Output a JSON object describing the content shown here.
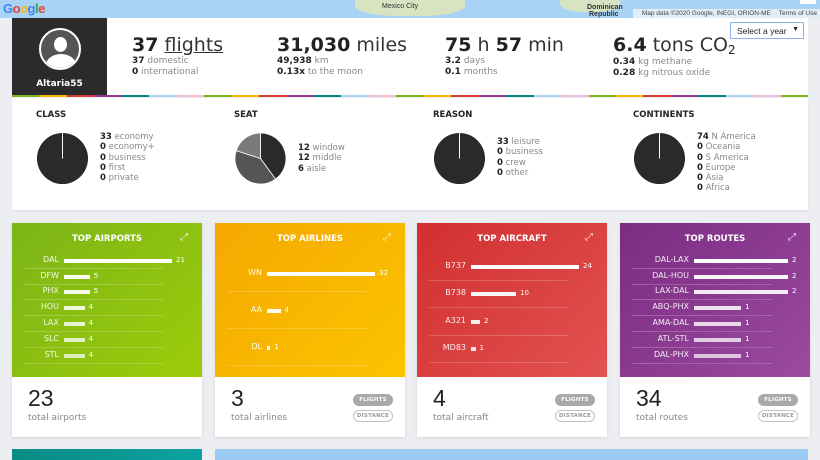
{
  "map": {
    "logo": [
      "G",
      "o",
      "o",
      "g",
      "l",
      "e"
    ],
    "places": [
      "Mexico City",
      "Dominican",
      "Republic"
    ],
    "attribution": "Map data ©2020 Google, INEGI, ORION-ME",
    "terms": "Terms of Use"
  },
  "profile": {
    "username": "Altaria55"
  },
  "stats": {
    "flights": {
      "number": "37",
      "unit": "flights",
      "lines": [
        {
          "v": "37",
          "t": "domestic"
        },
        {
          "v": "0",
          "t": "international"
        }
      ]
    },
    "distance": {
      "number": "31,030",
      "unit": "miles",
      "lines": [
        {
          "v": "49,938",
          "t": "km"
        },
        {
          "v": "0.13x",
          "t": "to the moon"
        }
      ]
    },
    "duration": {
      "hours": "75",
      "h": "h",
      "minutes": "57",
      "min": "min",
      "lines": [
        {
          "v": "3.2",
          "t": "days"
        },
        {
          "v": "0.1",
          "t": "months"
        }
      ]
    },
    "emissions": {
      "number": "6.4",
      "unit": "tons CO",
      "sub": "2",
      "lines": [
        {
          "v": "0.34",
          "t": "kg methane"
        },
        {
          "v": "0.28",
          "t": "kg nitrous oxide"
        }
      ]
    }
  },
  "year_select": {
    "value": "Select a year",
    "caret": "▼"
  },
  "stripe_colors": [
    "#7cb518",
    "#f7b500",
    "#d83a3a",
    "#8e3a8f",
    "#0f7f7f",
    "#a9d3f5",
    "#f2bcd6"
  ],
  "breakdown": [
    {
      "title": "CLASS",
      "items": [
        {
          "v": "33",
          "t": "economy"
        },
        {
          "v": "0",
          "t": "economy+"
        },
        {
          "v": "0",
          "t": "business"
        },
        {
          "v": "0",
          "t": "first"
        },
        {
          "v": "0",
          "t": "private"
        }
      ]
    },
    {
      "title": "SEAT",
      "items": [
        {
          "v": "12",
          "t": "window"
        },
        {
          "v": "12",
          "t": "middle"
        },
        {
          "v": "6",
          "t": "aisle"
        }
      ]
    },
    {
      "title": "REASON",
      "items": [
        {
          "v": "33",
          "t": "leisure"
        },
        {
          "v": "0",
          "t": "business"
        },
        {
          "v": "0",
          "t": "crew"
        },
        {
          "v": "0",
          "t": "other"
        }
      ]
    },
    {
      "title": "CONTINENTS",
      "items": [
        {
          "v": "74",
          "t": "N America"
        },
        {
          "v": "0",
          "t": "Oceania"
        },
        {
          "v": "0",
          "t": "S America"
        },
        {
          "v": "0",
          "t": "Europe"
        },
        {
          "v": "0",
          "t": "Asia"
        },
        {
          "v": "0",
          "t": "Africa"
        }
      ]
    }
  ],
  "pie_colors": [
    "#2a2a2a",
    "#555555",
    "#7a7a7a",
    "#999999",
    "#bbbbbb",
    "#dddddd"
  ],
  "cards": [
    {
      "title": "TOP AIRPORTS",
      "color1": "#7cb518",
      "color2": "#9ccc0a",
      "max": 21,
      "rows": [
        {
          "k": "DAL",
          "v": 21
        },
        {
          "k": "DFW",
          "v": 5
        },
        {
          "k": "PHX",
          "v": 5
        },
        {
          "k": "HOU",
          "v": 4
        },
        {
          "k": "LAX",
          "v": 4
        },
        {
          "k": "SLC",
          "v": 4
        },
        {
          "k": "STL",
          "v": 4
        }
      ],
      "total": "23",
      "total_label": "total airports",
      "pills": false
    },
    {
      "title": "TOP AIRLINES",
      "color1": "#f5a800",
      "color2": "#fbc400",
      "max": 32,
      "rows": [
        {
          "k": "WN",
          "v": 32
        },
        {
          "k": "AA",
          "v": 4
        },
        {
          "k": "DL",
          "v": 1
        }
      ],
      "total": "3",
      "total_label": "total airlines",
      "pills": true
    },
    {
      "title": "TOP AIRCRAFT",
      "color1": "#d22f2f",
      "color2": "#e25252",
      "max": 24,
      "rows": [
        {
          "k": "B737",
          "v": 24
        },
        {
          "k": "B738",
          "v": 10
        },
        {
          "k": "A321",
          "v": 2
        },
        {
          "k": "MD83",
          "v": 1
        }
      ],
      "total": "4",
      "total_label": "total aircraft",
      "pills": true
    },
    {
      "title": "TOP ROUTES",
      "color1": "#7b2d82",
      "color2": "#9a4aa0",
      "max": 2,
      "rows": [
        {
          "k": "DAL-LAX",
          "v": 2
        },
        {
          "k": "DAL-HOU",
          "v": 2
        },
        {
          "k": "LAX-DAL",
          "v": 2
        },
        {
          "k": "ABQ-PHX",
          "v": 1
        },
        {
          "k": "AMA-DAL",
          "v": 1
        },
        {
          "k": "ATL-STL",
          "v": 1
        },
        {
          "k": "DAL-PHX",
          "v": 1
        }
      ],
      "total": "34",
      "total_label": "total routes",
      "pills": true
    }
  ],
  "pill_labels": {
    "flights": "FLIGHTS",
    "distance": "DISTANCE"
  },
  "expand_icon": "⤢"
}
